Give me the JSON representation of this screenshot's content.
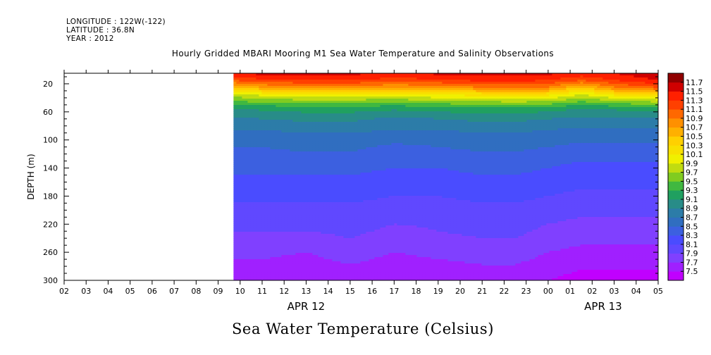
{
  "meta": {
    "longitude": "LONGITUDE : 122W(-122)",
    "latitude": "LATITUDE : 36.8N",
    "year": "YEAR : 2012"
  },
  "chart_data": {
    "type": "heatmap",
    "title": "Hourly Gridded MBARI Mooring M1 Sea Water Temperature and Salinity Observations",
    "variable_label": "Sea Water Temperature (Celsius)",
    "xlabel": "",
    "ylabel": "DEPTH (m)",
    "x_hour_ticks": [
      "02",
      "03",
      "04",
      "05",
      "06",
      "07",
      "08",
      "09",
      "10",
      "11",
      "12",
      "13",
      "14",
      "15",
      "16",
      "17",
      "18",
      "19",
      "20",
      "21",
      "22",
      "23",
      "00",
      "01",
      "02",
      "03",
      "04",
      "05"
    ],
    "x_date_labels": [
      {
        "label": "APR 12",
        "at_hour_index": 11
      },
      {
        "label": "APR 13",
        "at_hour_index": 24.5
      }
    ],
    "data_start_hour_index": 7.7,
    "y_ticks": [
      20,
      60,
      100,
      140,
      180,
      220,
      260,
      300
    ],
    "ylim": [
      300,
      5
    ],
    "colorbar": {
      "levels": [
        7.5,
        7.7,
        7.9,
        8.1,
        8.3,
        8.5,
        8.7,
        8.9,
        9.1,
        9.3,
        9.5,
        9.7,
        9.9,
        10.1,
        10.3,
        10.5,
        10.7,
        10.9,
        11.1,
        11.3,
        11.5,
        11.7
      ],
      "colors": [
        "#c000ff",
        "#a020ff",
        "#8040ff",
        "#6048ff",
        "#4a4cff",
        "#3c60e0",
        "#306ec0",
        "#2c7ca8",
        "#288c88",
        "#20a060",
        "#40b840",
        "#80cc20",
        "#c0dc10",
        "#f0f000",
        "#f8e000",
        "#ffd000",
        "#ffb000",
        "#ff9000",
        "#ff6800",
        "#ff4000",
        "#ff2000",
        "#d00000",
        "#900000"
      ]
    },
    "depth_levels": [
      5,
      15,
      25,
      35,
      45,
      55,
      70,
      90,
      110,
      130,
      150,
      170,
      190,
      210,
      230,
      250,
      270,
      285,
      300
    ],
    "time_hour_indices": [
      7.7,
      9,
      11,
      13,
      15,
      17,
      19,
      20.5,
      22,
      23.5,
      25,
      27
    ],
    "temperature": [
      [
        11.55,
        11.55,
        11.6,
        11.55,
        11.5,
        11.55,
        11.6,
        11.6,
        11.55,
        11.45,
        11.5,
        11.7
      ],
      [
        11.1,
        11.25,
        11.3,
        11.3,
        11.2,
        11.25,
        11.35,
        11.35,
        11.3,
        11.1,
        11.3,
        11.5
      ],
      [
        10.5,
        10.7,
        10.8,
        10.8,
        10.7,
        10.8,
        10.9,
        10.95,
        10.9,
        10.5,
        10.9,
        11.1
      ],
      [
        9.8,
        10.0,
        10.1,
        10.1,
        10.05,
        10.15,
        10.2,
        10.3,
        10.2,
        9.9,
        10.2,
        10.4
      ],
      [
        9.5,
        9.55,
        9.6,
        9.6,
        9.55,
        9.65,
        9.7,
        9.75,
        9.7,
        9.5,
        9.65,
        9.75
      ],
      [
        9.1,
        9.15,
        9.2,
        9.2,
        9.15,
        9.2,
        9.25,
        9.25,
        9.2,
        9.1,
        9.15,
        9.2
      ],
      [
        8.85,
        8.9,
        8.95,
        8.95,
        8.85,
        8.9,
        8.95,
        8.95,
        8.9,
        8.85,
        8.85,
        8.85
      ],
      [
        8.65,
        8.65,
        8.7,
        8.7,
        8.65,
        8.65,
        8.7,
        8.7,
        8.65,
        8.6,
        8.6,
        8.6
      ],
      [
        8.5,
        8.5,
        8.55,
        8.55,
        8.45,
        8.5,
        8.55,
        8.55,
        8.5,
        8.45,
        8.45,
        8.45
      ],
      [
        8.4,
        8.4,
        8.4,
        8.4,
        8.35,
        8.35,
        8.4,
        8.4,
        8.35,
        8.3,
        8.3,
        8.3
      ],
      [
        8.3,
        8.3,
        8.3,
        8.3,
        8.25,
        8.25,
        8.3,
        8.3,
        8.25,
        8.2,
        8.2,
        8.2
      ],
      [
        8.2,
        8.2,
        8.2,
        8.2,
        8.15,
        8.15,
        8.2,
        8.2,
        8.15,
        8.1,
        8.1,
        8.1
      ],
      [
        8.1,
        8.1,
        8.1,
        8.1,
        8.05,
        8.05,
        8.1,
        8.1,
        8.05,
        8.0,
        8.0,
        8.0
      ],
      [
        8.0,
        8.0,
        8.0,
        8.0,
        7.95,
        7.95,
        8.0,
        8.0,
        7.95,
        7.9,
        7.9,
        7.9
      ],
      [
        7.9,
        7.9,
        7.9,
        7.95,
        7.85,
        7.9,
        7.95,
        7.95,
        7.85,
        7.8,
        7.8,
        7.8
      ],
      [
        7.8,
        7.8,
        7.75,
        7.85,
        7.75,
        7.8,
        7.85,
        7.85,
        7.75,
        7.7,
        7.7,
        7.7
      ],
      [
        7.7,
        7.7,
        7.65,
        7.75,
        7.65,
        7.7,
        7.75,
        7.75,
        7.65,
        7.6,
        7.6,
        7.6
      ],
      [
        7.6,
        7.6,
        7.6,
        7.65,
        7.55,
        7.6,
        7.65,
        7.65,
        7.55,
        7.5,
        7.5,
        7.5
      ],
      [
        7.55,
        7.55,
        7.55,
        7.6,
        7.5,
        7.55,
        7.6,
        7.6,
        7.5,
        7.45,
        7.45,
        7.45
      ]
    ]
  }
}
